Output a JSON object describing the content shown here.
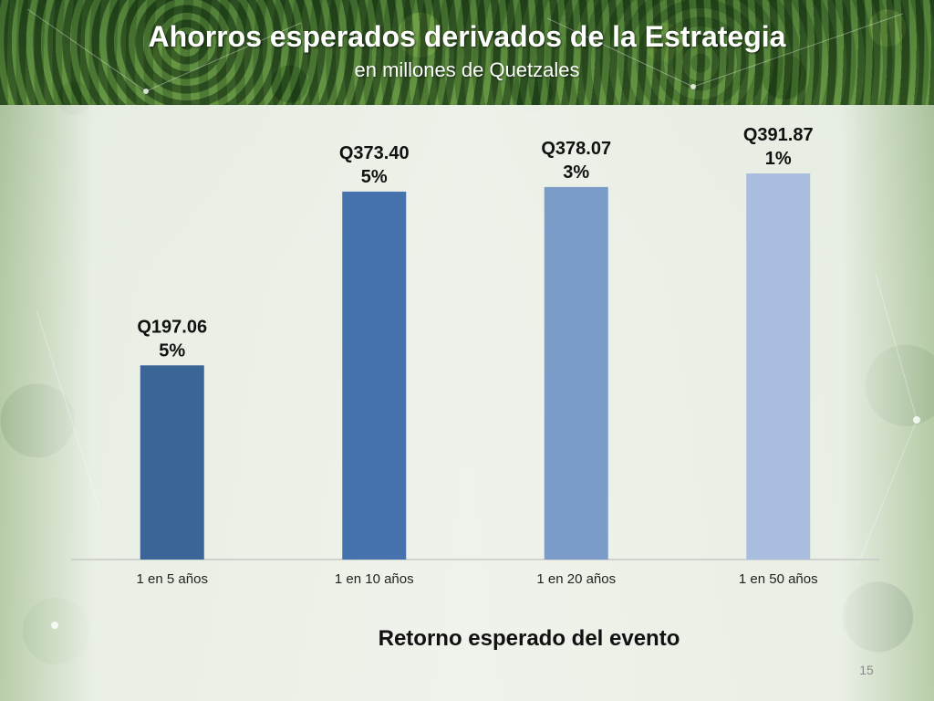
{
  "slide": {
    "title": "Ahorros esperados derivados de la Estrategia",
    "subtitle": "en millones de Quetzales",
    "page_number": "15"
  },
  "chart_data": {
    "type": "bar",
    "title": "Ahorros esperados derivados de la Estrategia",
    "subtitle": "en millones de Quetzales",
    "categories": [
      "1 en 5 años",
      "1 en 10 años",
      "1 en 20 años",
      "1 en 50 años"
    ],
    "values": [
      197.06,
      373.4,
      378.07,
      391.87
    ],
    "value_labels": [
      "Q197.06",
      "Q373.40",
      "Q378.07",
      "Q391.87"
    ],
    "percent_labels": [
      "5%",
      "5%",
      "3%",
      "1%"
    ],
    "xlabel": "Retorno esperado del evento",
    "ylabel": "",
    "ylim": [
      0,
      400
    ],
    "grid": false,
    "legend": "none",
    "colors": [
      "#3c6597",
      "#4673ae",
      "#7b9cc8",
      "#a9bddf"
    ]
  }
}
